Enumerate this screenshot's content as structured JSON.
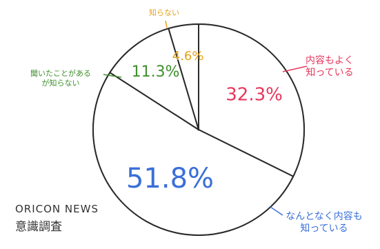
{
  "chart_data": {
    "type": "pie",
    "title": "",
    "slices": [
      {
        "label": "内容もよく知っている",
        "value": 32.3,
        "value_label": "32.3%",
        "color": "#e8365c"
      },
      {
        "label": "なんとなく内容も知っている",
        "value": 51.8,
        "value_label": "51.8%",
        "color": "#3a6fd8"
      },
      {
        "label": "聞いたことがあるが知らない",
        "value": 11.3,
        "value_label": "11.3%",
        "color": "#3f8f2c"
      },
      {
        "label": "知らない",
        "value": 4.6,
        "value_label": "4.6%",
        "color": "#e6a117"
      }
    ],
    "start_angle_deg": 0,
    "direction": "clockwise"
  },
  "source": {
    "line1": "ORICON NEWS",
    "line2": "意識調査"
  }
}
